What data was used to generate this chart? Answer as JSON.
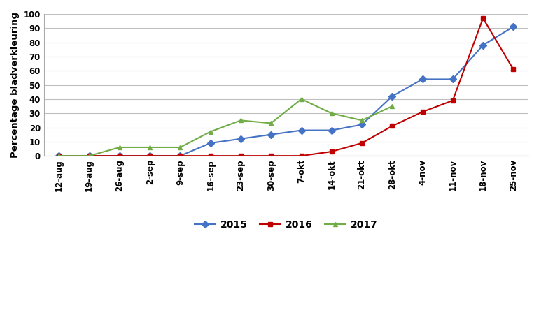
{
  "x_labels": [
    "12-aug",
    "19-aug",
    "26-aug",
    "2-sep",
    "9-sep",
    "16-sep",
    "23-sep",
    "30-sep",
    "7-okt",
    "14-okt",
    "21-okt",
    "28-okt",
    "4-nov",
    "11-nov",
    "18-nov",
    "25-nov"
  ],
  "series_2015": [
    0,
    0,
    0,
    0,
    0,
    9,
    12,
    15,
    18,
    18,
    22,
    42,
    54,
    54,
    78,
    91
  ],
  "series_2016": [
    0,
    0,
    0,
    0,
    0,
    0,
    0,
    0,
    0,
    3,
    9,
    21,
    31,
    39,
    97,
    61
  ],
  "series_2017": [
    0,
    0,
    6,
    6,
    6,
    17,
    25,
    23,
    40,
    30,
    25,
    35,
    null,
    null,
    null,
    null
  ],
  "color_2015": "#4472C4",
  "color_2016": "#C00000",
  "color_2017": "#70AD47",
  "ylabel": "Percentage bladverkleuring",
  "ylim": [
    0,
    100
  ],
  "yticks": [
    0,
    10,
    20,
    30,
    40,
    50,
    60,
    70,
    80,
    90,
    100
  ],
  "grid_color": "#BFBFBF",
  "background_color": "#FFFFFF",
  "marker_2015": "D",
  "marker_2016": "s",
  "marker_2017": "^",
  "linewidth": 1.5,
  "markersize": 5
}
